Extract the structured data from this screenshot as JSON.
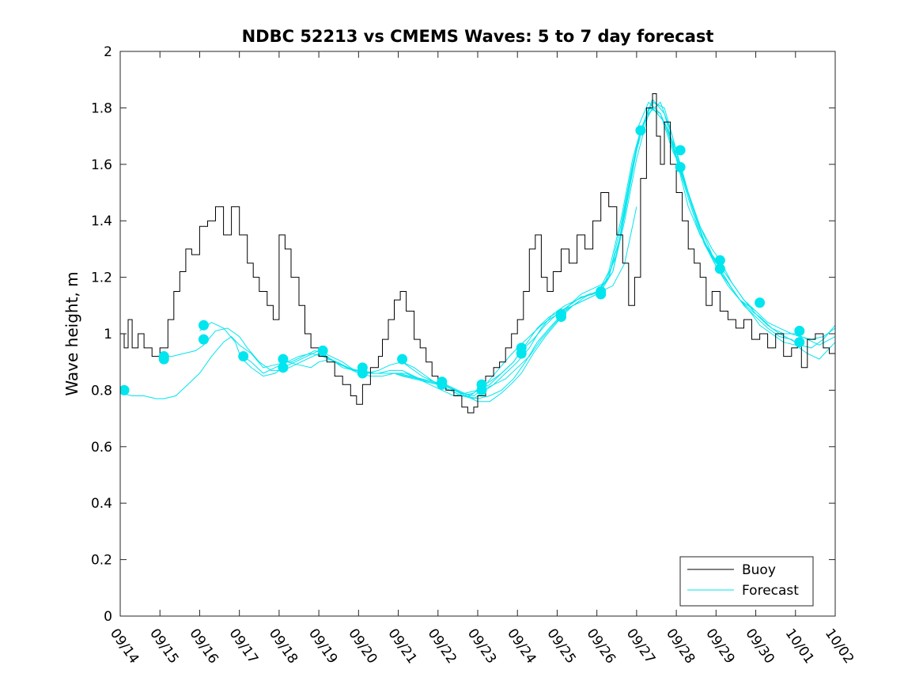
{
  "chart_data": {
    "type": "line",
    "title": "NDBC 52213 vs CMEMS Waves: 5 to 7 day forecast",
    "xlabel": "",
    "ylabel": "Wave height, m",
    "x_tick_labels": [
      "09/14",
      "09/15",
      "09/16",
      "09/17",
      "09/18",
      "09/19",
      "09/20",
      "09/21",
      "09/22",
      "09/23",
      "09/24",
      "09/25",
      "09/26",
      "09/27",
      "09/28",
      "09/29",
      "09/30",
      "10/01",
      "10/02"
    ],
    "y_ticks": [
      0,
      0.2,
      0.4,
      0.6,
      0.8,
      1,
      1.2,
      1.4,
      1.6,
      1.8,
      2
    ],
    "xlim": [
      0,
      18
    ],
    "ylim": [
      0,
      2
    ],
    "grid": false,
    "legend_position": "bottom-right",
    "colors": {
      "buoy": "#000000",
      "forecast": "#00e5ee"
    },
    "legend": [
      {
        "label": "Buoy",
        "series": "buoy"
      },
      {
        "label": "Forecast",
        "series": "forecast"
      }
    ],
    "buoy": {
      "name": "Buoy",
      "x": [
        0,
        0.1,
        0.2,
        0.3,
        0.45,
        0.6,
        0.8,
        1,
        1.2,
        1.35,
        1.5,
        1.65,
        1.8,
        2,
        2.2,
        2.4,
        2.6,
        2.8,
        3,
        3.2,
        3.35,
        3.5,
        3.7,
        3.85,
        4,
        4.15,
        4.3,
        4.5,
        4.65,
        4.8,
        5,
        5.2,
        5.4,
        5.6,
        5.8,
        5.95,
        6.1,
        6.3,
        6.5,
        6.6,
        6.75,
        6.9,
        7.05,
        7.2,
        7.4,
        7.55,
        7.7,
        7.85,
        8,
        8.2,
        8.4,
        8.6,
        8.75,
        8.9,
        9,
        9.2,
        9.4,
        9.55,
        9.7,
        9.85,
        10,
        10.15,
        10.3,
        10.45,
        10.6,
        10.75,
        10.9,
        11.1,
        11.3,
        11.5,
        11.7,
        11.9,
        12.1,
        12.3,
        12.5,
        12.65,
        12.8,
        12.95,
        13.1,
        13.25,
        13.4,
        13.5,
        13.6,
        13.7,
        13.85,
        14,
        14.15,
        14.3,
        14.45,
        14.6,
        14.75,
        14.9,
        15.1,
        15.3,
        15.5,
        15.7,
        15.9,
        16.1,
        16.3,
        16.5,
        16.7,
        16.9,
        17.05,
        17.15,
        17.3,
        17.5,
        17.7,
        17.85,
        18
      ],
      "values": [
        1.0,
        0.95,
        1.05,
        0.95,
        1.0,
        0.95,
        0.92,
        0.95,
        1.05,
        1.15,
        1.22,
        1.3,
        1.28,
        1.38,
        1.4,
        1.45,
        1.35,
        1.45,
        1.35,
        1.25,
        1.2,
        1.15,
        1.1,
        1.05,
        1.35,
        1.3,
        1.2,
        1.1,
        1.0,
        0.95,
        0.92,
        0.9,
        0.85,
        0.82,
        0.78,
        0.75,
        0.82,
        0.88,
        0.92,
        0.98,
        1.05,
        1.12,
        1.15,
        1.08,
        0.98,
        0.95,
        0.9,
        0.85,
        0.82,
        0.8,
        0.78,
        0.74,
        0.72,
        0.74,
        0.78,
        0.85,
        0.88,
        0.9,
        0.95,
        1.0,
        1.05,
        1.15,
        1.3,
        1.35,
        1.2,
        1.15,
        1.22,
        1.3,
        1.25,
        1.35,
        1.3,
        1.4,
        1.5,
        1.45,
        1.35,
        1.25,
        1.1,
        1.2,
        1.55,
        1.8,
        1.85,
        1.7,
        1.6,
        1.75,
        1.6,
        1.5,
        1.4,
        1.3,
        1.25,
        1.2,
        1.1,
        1.15,
        1.08,
        1.05,
        1.02,
        1.05,
        0.98,
        1.0,
        0.95,
        1.0,
        0.92,
        0.95,
        0.97,
        0.88,
        0.98,
        1.0,
        0.95,
        0.93,
        0.95
      ]
    },
    "forecast": {
      "name": "Forecast",
      "lines": [
        {
          "x": [
            0,
            0.3,
            0.6,
            0.9,
            1.1,
            1.4,
            1.7,
            2,
            2.3,
            2.6,
            2.8,
            3,
            3.3,
            3.6,
            3.9,
            4.2,
            4.5,
            4.8,
            5,
            5.3,
            5.6
          ],
          "values": [
            0.79,
            0.78,
            0.78,
            0.77,
            0.77,
            0.78,
            0.82,
            0.86,
            0.92,
            0.97,
            0.99,
            0.96,
            0.93,
            0.88,
            0.89,
            0.9,
            0.89,
            0.88,
            0.9,
            0.91,
            0.89
          ]
        },
        {
          "x": [
            1,
            1.3,
            1.6,
            1.9,
            2.1,
            2.4,
            2.7,
            3,
            3.2,
            3.5,
            3.8,
            4.1,
            4.4,
            4.7,
            5,
            5.3,
            5.6,
            5.9,
            6.2,
            6.5,
            6.8,
            7.1,
            7.4,
            7.7,
            8
          ],
          "values": [
            0.92,
            0.92,
            0.93,
            0.94,
            0.96,
            1.01,
            1.02,
            0.99,
            0.95,
            0.9,
            0.87,
            0.87,
            0.89,
            0.91,
            0.93,
            0.91,
            0.88,
            0.87,
            0.86,
            0.87,
            0.89,
            0.9,
            0.88,
            0.85,
            0.82
          ]
        },
        {
          "x": [
            2,
            2.3,
            2.6,
            2.9,
            3,
            3.3,
            3.6,
            3.9,
            4.2,
            4.5,
            4.8,
            5.1,
            5.4,
            5.7,
            6,
            6.3,
            6.6,
            6.9,
            7.2,
            7.5,
            7.8,
            8.1,
            8.4,
            8.7,
            9
          ],
          "values": [
            1.01,
            1.04,
            1.02,
            0.97,
            0.93,
            0.9,
            0.86,
            0.88,
            0.9,
            0.92,
            0.93,
            0.92,
            0.9,
            0.88,
            0.86,
            0.85,
            0.85,
            0.86,
            0.86,
            0.84,
            0.82,
            0.8,
            0.78,
            0.79,
            0.8
          ]
        },
        {
          "x": [
            3,
            3.3,
            3.6,
            3.9,
            4.1,
            4.4,
            4.7,
            5,
            5.3,
            5.6,
            5.9,
            6.2,
            6.5,
            6.8,
            7.1,
            7.4,
            7.7,
            8,
            8.3,
            8.6,
            8.9,
            9.2,
            9.5,
            9.8,
            10
          ],
          "values": [
            0.92,
            0.88,
            0.85,
            0.86,
            0.88,
            0.9,
            0.92,
            0.94,
            0.92,
            0.9,
            0.87,
            0.86,
            0.86,
            0.87,
            0.87,
            0.85,
            0.83,
            0.82,
            0.8,
            0.78,
            0.79,
            0.82,
            0.87,
            0.92,
            0.95
          ]
        },
        {
          "x": [
            4,
            4.3,
            4.6,
            4.9,
            5.1,
            5.4,
            5.7,
            6,
            6.3,
            6.6,
            6.9,
            7.2,
            7.5,
            7.8,
            8.1,
            8.4,
            8.7,
            9,
            9.3,
            9.6,
            9.9,
            10.2,
            10.5,
            10.8,
            11
          ],
          "values": [
            0.9,
            0.9,
            0.92,
            0.94,
            0.93,
            0.9,
            0.88,
            0.87,
            0.86,
            0.86,
            0.86,
            0.85,
            0.84,
            0.83,
            0.82,
            0.8,
            0.78,
            0.77,
            0.78,
            0.8,
            0.84,
            0.9,
            0.97,
            1.02,
            1.05
          ]
        },
        {
          "x": [
            5,
            5.3,
            5.6,
            5.9,
            6.1,
            6.4,
            6.7,
            7,
            7.3,
            7.6,
            7.9,
            8.2,
            8.5,
            8.8,
            9,
            9.3,
            9.6,
            9.9,
            10.2,
            10.5,
            10.8,
            11.1,
            11.4,
            11.7,
            12
          ],
          "values": [
            0.94,
            0.91,
            0.89,
            0.87,
            0.87,
            0.86,
            0.86,
            0.86,
            0.85,
            0.84,
            0.83,
            0.82,
            0.8,
            0.78,
            0.8,
            0.82,
            0.86,
            0.9,
            0.96,
            1.02,
            1.06,
            1.08,
            1.1,
            1.12,
            1.14
          ]
        },
        {
          "x": [
            6,
            6.3,
            6.6,
            6.9,
            7.1,
            7.4,
            7.7,
            8,
            8.3,
            8.6,
            8.9,
            9.1,
            9.4,
            9.7,
            10,
            10.3,
            10.6,
            10.9,
            11.2,
            11.5,
            11.8,
            12.1,
            12.4,
            12.7,
            13
          ],
          "values": [
            0.86,
            0.86,
            0.86,
            0.86,
            0.85,
            0.84,
            0.83,
            0.82,
            0.8,
            0.78,
            0.77,
            0.79,
            0.82,
            0.86,
            0.9,
            0.95,
            1.02,
            1.07,
            1.1,
            1.12,
            1.14,
            1.15,
            1.17,
            1.25,
            1.45
          ]
        },
        {
          "x": [
            7,
            7.3,
            7.6,
            7.9,
            8.1,
            8.4,
            8.7,
            9,
            9.3,
            9.6,
            9.9,
            10.1,
            10.4,
            10.7,
            11,
            11.3,
            11.6,
            11.9,
            12.2,
            12.5,
            12.8,
            13.1,
            13.4,
            13.7,
            14
          ],
          "values": [
            0.91,
            0.88,
            0.85,
            0.83,
            0.82,
            0.8,
            0.78,
            0.76,
            0.76,
            0.79,
            0.83,
            0.86,
            0.93,
            0.99,
            1.04,
            1.1,
            1.14,
            1.16,
            1.18,
            1.28,
            1.52,
            1.72,
            1.82,
            1.8,
            1.65
          ]
        },
        {
          "x": [
            8,
            8.3,
            8.6,
            8.9,
            9.1,
            9.4,
            9.7,
            10,
            10.3,
            10.6,
            10.9,
            11.1,
            11.4,
            11.7,
            12,
            12.3,
            12.6,
            12.9,
            13.1,
            13.4,
            13.7,
            14,
            14.3,
            14.6,
            15
          ],
          "values": [
            0.83,
            0.81,
            0.79,
            0.78,
            0.8,
            0.82,
            0.84,
            0.88,
            0.92,
            0.98,
            1.03,
            1.06,
            1.1,
            1.13,
            1.15,
            1.2,
            1.35,
            1.58,
            1.72,
            1.83,
            1.78,
            1.62,
            1.45,
            1.35,
            1.25
          ]
        },
        {
          "x": [
            9,
            9.3,
            9.6,
            9.9,
            10.1,
            10.4,
            10.7,
            11,
            11.3,
            11.6,
            11.9,
            12.1,
            12.4,
            12.7,
            13,
            13.3,
            13.6,
            13.9,
            14.1,
            14.4,
            14.7,
            15,
            15.3,
            15.6,
            16
          ],
          "values": [
            0.81,
            0.83,
            0.86,
            0.9,
            0.94,
            0.98,
            1.03,
            1.07,
            1.1,
            1.13,
            1.14,
            1.16,
            1.22,
            1.4,
            1.62,
            1.78,
            1.82,
            1.7,
            1.59,
            1.45,
            1.33,
            1.24,
            1.17,
            1.12,
            1.08
          ]
        },
        {
          "x": [
            10,
            10.3,
            10.6,
            10.9,
            11.1,
            11.4,
            11.7,
            12,
            12.3,
            12.6,
            12.9,
            13.1,
            13.4,
            13.7,
            14,
            14.3,
            14.6,
            14.9,
            15.1,
            15.4,
            15.7,
            16,
            16.3,
            16.6,
            17
          ],
          "values": [
            0.95,
            0.99,
            1.03,
            1.06,
            1.07,
            1.1,
            1.12,
            1.14,
            1.2,
            1.38,
            1.6,
            1.72,
            1.8,
            1.75,
            1.62,
            1.48,
            1.35,
            1.28,
            1.24,
            1.18,
            1.12,
            1.07,
            1.03,
            1.0,
            0.97
          ]
        },
        {
          "x": [
            11,
            11.3,
            11.6,
            11.9,
            12.1,
            12.4,
            12.7,
            13,
            13.3,
            13.6,
            13.9,
            14.1,
            14.4,
            14.7,
            15,
            15.3,
            15.6,
            15.9,
            16.1,
            16.4,
            16.7,
            17,
            17.3,
            17.6,
            18
          ],
          "values": [
            1.07,
            1.1,
            1.13,
            1.14,
            1.15,
            1.22,
            1.42,
            1.65,
            1.8,
            1.78,
            1.68,
            1.58,
            1.45,
            1.32,
            1.24,
            1.18,
            1.12,
            1.07,
            1.03,
            1.0,
            0.97,
            0.96,
            0.93,
            0.91,
            0.97
          ]
        },
        {
          "x": [
            12,
            12.3,
            12.6,
            12.9,
            13.1,
            13.4,
            13.7,
            14,
            14.3,
            14.6,
            14.9,
            15.1,
            15.4,
            15.7,
            16,
            16.3,
            16.6,
            16.9,
            17.1,
            17.4,
            17.7,
            18
          ],
          "values": [
            1.14,
            1.22,
            1.4,
            1.62,
            1.72,
            1.8,
            1.75,
            1.65,
            1.5,
            1.38,
            1.28,
            1.23,
            1.16,
            1.1,
            1.06,
            1.02,
            0.99,
            0.98,
            0.96,
            0.95,
            0.98,
            1.03
          ]
        },
        {
          "x": [
            13,
            13.3,
            13.6,
            13.9,
            14.1,
            14.4,
            14.7,
            15,
            15.3,
            15.6,
            15.9,
            16.1,
            16.4,
            16.7,
            17,
            17.3,
            17.6,
            18
          ],
          "values": [
            1.72,
            1.82,
            1.78,
            1.65,
            1.59,
            1.45,
            1.32,
            1.24,
            1.18,
            1.12,
            1.08,
            1.06,
            1.02,
            1.0,
            1.0,
            0.98,
            0.96,
            0.99
          ]
        },
        {
          "x": [
            14,
            14.3,
            14.6,
            14.9,
            15.1,
            15.4,
            15.7,
            16,
            16.3,
            16.6,
            16.9,
            17.1,
            17.4,
            17.7,
            18
          ],
          "values": [
            1.65,
            1.5,
            1.38,
            1.3,
            1.26,
            1.18,
            1.12,
            1.08,
            1.04,
            1.02,
            1.0,
            0.99,
            0.98,
            0.99,
            1.02
          ]
        }
      ],
      "markers": {
        "x": [
          0.1,
          1.1,
          1.1,
          2.1,
          2.1,
          3.1,
          4.1,
          4.1,
          5.1,
          6.1,
          6.1,
          7.1,
          8.1,
          8.1,
          9.1,
          9.1,
          10.1,
          10.1,
          11.1,
          11.1,
          12.1,
          12.1,
          13.1,
          14.1,
          14.1,
          15.1,
          15.1,
          16.1,
          17.1,
          17.1
        ],
        "values": [
          0.8,
          0.91,
          0.92,
          1.03,
          0.98,
          0.92,
          0.88,
          0.91,
          0.94,
          0.86,
          0.88,
          0.91,
          0.82,
          0.83,
          0.8,
          0.82,
          0.93,
          0.95,
          1.06,
          1.07,
          1.14,
          1.15,
          1.72,
          1.65,
          1.59,
          1.23,
          1.26,
          1.11,
          1.01,
          0.97
        ]
      }
    }
  }
}
